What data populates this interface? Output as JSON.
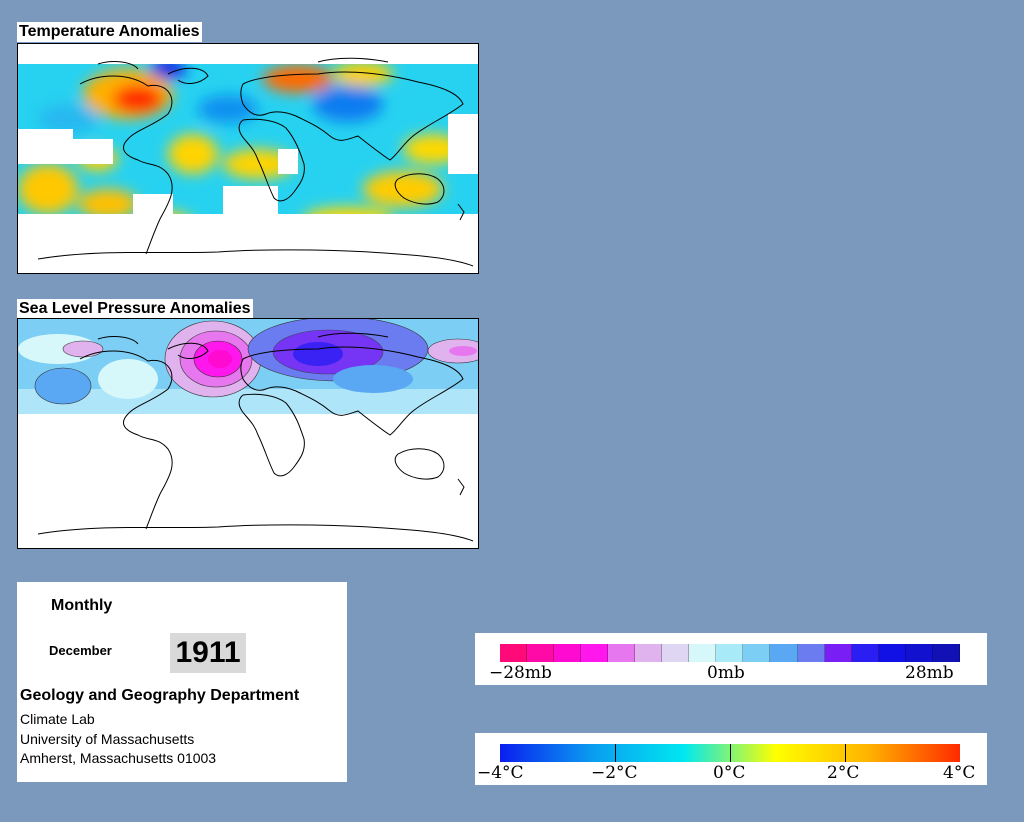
{
  "temperature_panel": {
    "title": "Temperature Anomalies"
  },
  "pressure_panel": {
    "title": "Sea Level Pressure Anomalies"
  },
  "info": {
    "period": "Monthly",
    "month": "December",
    "year": "1911",
    "department": "Geology and Geography Department",
    "lab": "Climate Lab",
    "university": "University of Massachusetts",
    "address": "Amherst, Massachusetts 01003"
  },
  "pressure_legend": {
    "labels": [
      "−28mb",
      "0mb",
      "28mb"
    ],
    "colors": [
      "#ff0a78",
      "#ff0aa6",
      "#ff0ad0",
      "#ff17ee",
      "#e777ee",
      "#e0b3ee",
      "#dfd6f4",
      "#d7f8fb",
      "#a8eaf8",
      "#7dcef5",
      "#5aa8f3",
      "#6b7bf0",
      "#7a1ef6",
      "#2a1ef2",
      "#1111e6",
      "#1111cf",
      "#1111b5"
    ]
  },
  "temperature_legend": {
    "labels": [
      "−4°C",
      "−2°C",
      "0°C",
      "2°C",
      "4°C"
    ],
    "gradient": [
      "#0a1ef0",
      "#0a9cf0",
      "#00e8f0",
      "#ffff00",
      "#ffb400",
      "#ff2a00"
    ]
  }
}
